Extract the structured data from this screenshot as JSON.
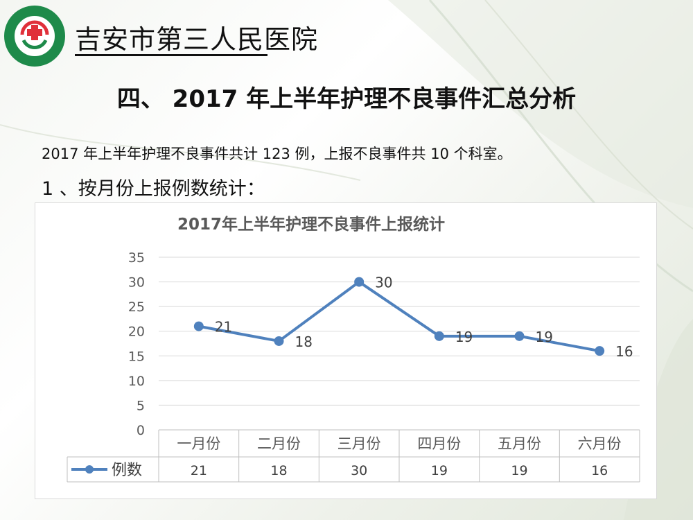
{
  "hospital": {
    "name": "吉安市第三人民医院"
  },
  "slide": {
    "title": "四、 2017 年上半年护理不良事件汇总分析",
    "summary": "2017 年上半年护理不良事件共计 123 例，上报不良事件共 10 个科室。",
    "subtitle": "1 、按月份上报例数统计："
  },
  "colors": {
    "series": "#4f81bd",
    "grid": "#d9d9d9"
  },
  "chart_data": {
    "type": "line",
    "title": "2017年上半年护理不良事件上报统计",
    "categories": [
      "一月份",
      "二月份",
      "三月份",
      "四月份",
      "五月份",
      "六月份"
    ],
    "series": [
      {
        "name": "例数",
        "values": [
          21,
          18,
          30,
          19,
          19,
          16
        ]
      }
    ],
    "ylim": [
      0,
      35
    ],
    "yticks": [
      0,
      5,
      10,
      15,
      20,
      25,
      30,
      35
    ],
    "grid": true,
    "data_labels": true,
    "data_table": true
  }
}
